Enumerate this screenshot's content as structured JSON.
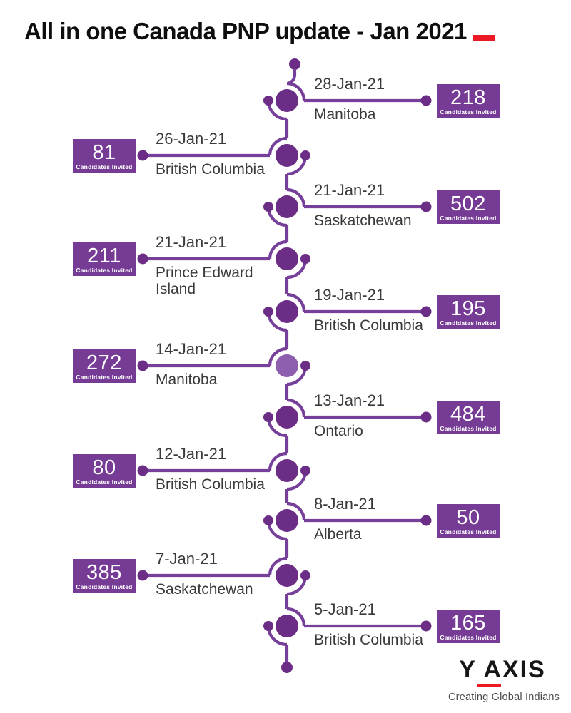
{
  "title": {
    "text": "All in one Canada PNP update - Jan 2021"
  },
  "badge_label": "Candidates Invited",
  "colors": {
    "purple_line": "#76409A",
    "purple_dark": "#6C2D86",
    "purple_box": "#753B95",
    "purple_light_node": "#8D5FAE",
    "red_accent": "#EC1B23",
    "text": "#3A3A3A"
  },
  "timeline": {
    "entries": [
      {
        "date": "28-Jan-21",
        "province": "Manitoba",
        "count": "218",
        "side": "right"
      },
      {
        "date": "26-Jan-21",
        "province": "British Columbia",
        "count": "81",
        "side": "left"
      },
      {
        "date": "21-Jan-21",
        "province": "Saskatchewan",
        "count": "502",
        "side": "right"
      },
      {
        "date": "21-Jan-21",
        "province": "Prince Edward Island",
        "count": "211",
        "side": "left"
      },
      {
        "date": "19-Jan-21",
        "province": "British Columbia",
        "count": "195",
        "side": "right"
      },
      {
        "date": "14-Jan-21",
        "province": "Manitoba",
        "count": "272",
        "side": "left",
        "node_color": "#8D5FAE"
      },
      {
        "date": "13-Jan-21",
        "province": "Ontario",
        "count": "484",
        "side": "right"
      },
      {
        "date": "12-Jan-21",
        "province": "British Columbia",
        "count": "80",
        "side": "left"
      },
      {
        "date": "8-Jan-21",
        "province": "Alberta",
        "count": "50",
        "side": "right"
      },
      {
        "date": "7-Jan-21",
        "province": "Saskatchewan",
        "count": "385",
        "side": "left"
      },
      {
        "date": "5-Jan-21",
        "province": "British Columbia",
        "count": "165",
        "side": "right"
      }
    ]
  },
  "logo": {
    "name": "Y AXIS",
    "tagline": "Creating Global Indians"
  }
}
